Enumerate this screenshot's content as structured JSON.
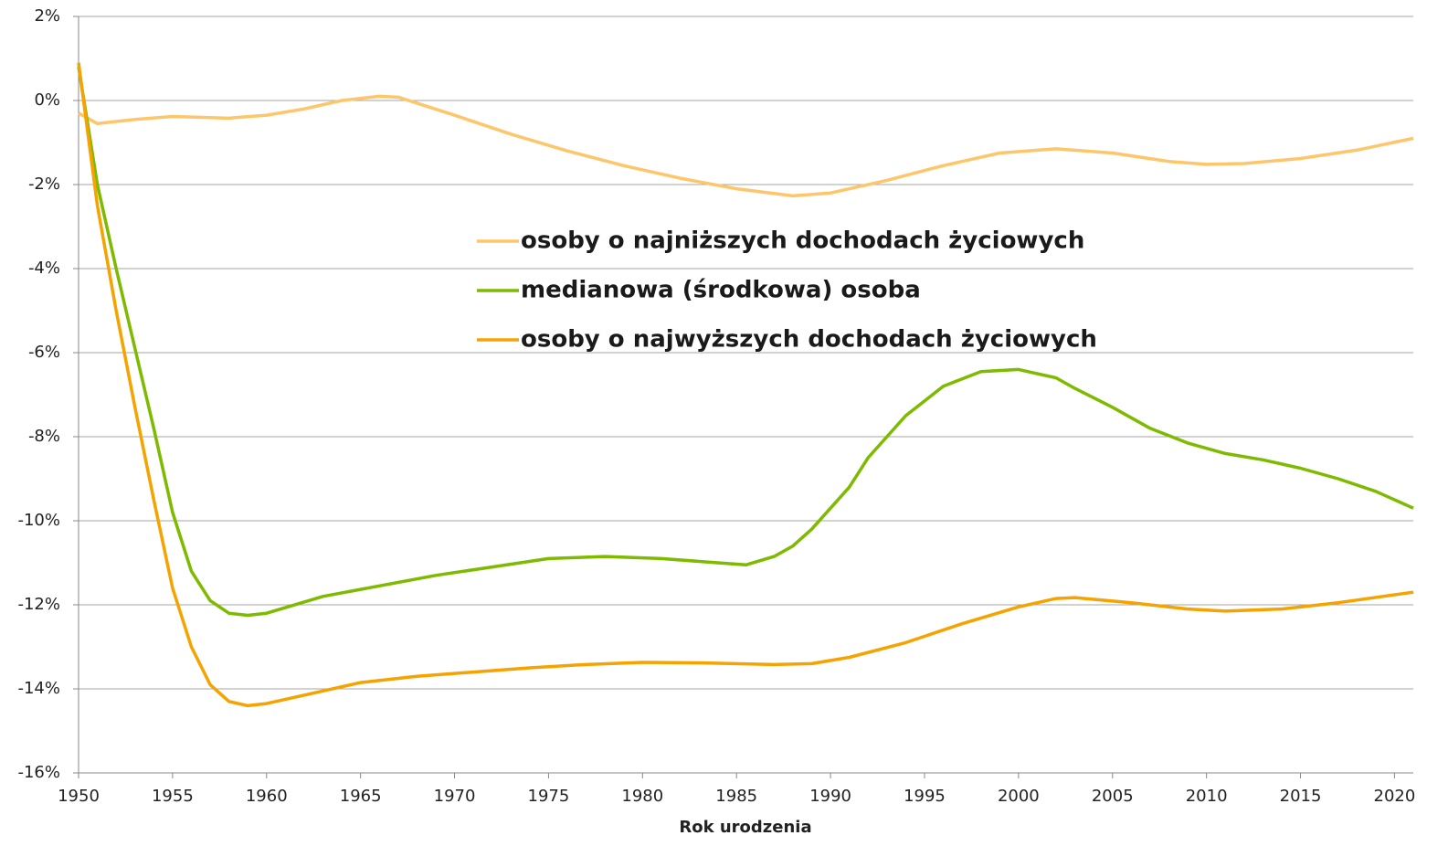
{
  "chart_data": {
    "type": "line",
    "xlabel": "Rok urodzenia",
    "xlim": [
      1950,
      2021
    ],
    "xticks": [
      1950,
      1955,
      1960,
      1965,
      1970,
      1975,
      1980,
      1985,
      1990,
      1995,
      2000,
      2005,
      2010,
      2015,
      2020
    ],
    "ylim": [
      -16,
      2
    ],
    "yticks": [
      {
        "value": 2,
        "label": "2%"
      },
      {
        "value": 0,
        "label": "0%"
      },
      {
        "value": -2,
        "label": "-2%"
      },
      {
        "value": -4,
        "label": "-4%"
      },
      {
        "value": -6,
        "label": "-6%"
      },
      {
        "value": -8,
        "label": "-8%"
      },
      {
        "value": -10,
        "label": "-10%"
      },
      {
        "value": -12,
        "label": "-12%"
      },
      {
        "value": -14,
        "label": "-14%"
      },
      {
        "value": -16,
        "label": "-16%"
      }
    ],
    "grid": true,
    "legend": "center",
    "series": [
      {
        "name": "osoby o najniższych dochodach życiowych",
        "color": "#fdc66b",
        "x": [
          1950,
          1951,
          1953,
          1955,
          1958,
          1960,
          1962,
          1964,
          1966,
          1967,
          1970,
          1973,
          1976,
          1979,
          1982,
          1985,
          1988,
          1990,
          1993,
          1996,
          1999,
          2002,
          2005,
          2008,
          2010,
          2012,
          2015,
          2018,
          2021
        ],
        "values": [
          -0.3,
          -0.55,
          -0.45,
          -0.38,
          -0.42,
          -0.35,
          -0.2,
          0.0,
          0.1,
          0.08,
          -0.35,
          -0.8,
          -1.2,
          -1.55,
          -1.85,
          -2.1,
          -2.27,
          -2.2,
          -1.9,
          -1.55,
          -1.25,
          -1.15,
          -1.25,
          -1.45,
          -1.52,
          -1.5,
          -1.38,
          -1.18,
          -0.9
        ]
      },
      {
        "name": "medianowa (środkowa) osoba",
        "color": "#7dba00",
        "x": [
          1950,
          1951,
          1952,
          1953,
          1954,
          1955,
          1956,
          1957,
          1958,
          1959,
          1960,
          1963,
          1966,
          1969,
          1972,
          1975,
          1978,
          1981,
          1984,
          1985.5,
          1987,
          1988,
          1989,
          1991,
          1992,
          1994,
          1996,
          1998,
          2000,
          2002,
          2003,
          2005,
          2007,
          2009,
          2011,
          2013,
          2015,
          2017,
          2019,
          2021
        ],
        "values": [
          0.8,
          -2.0,
          -4.0,
          -5.9,
          -7.8,
          -9.8,
          -11.2,
          -11.9,
          -12.2,
          -12.25,
          -12.2,
          -11.8,
          -11.55,
          -11.3,
          -11.1,
          -10.9,
          -10.85,
          -10.9,
          -11.0,
          -11.05,
          -10.85,
          -10.6,
          -10.2,
          -9.2,
          -8.5,
          -7.5,
          -6.8,
          -6.45,
          -6.4,
          -6.6,
          -6.85,
          -7.3,
          -7.8,
          -8.15,
          -8.4,
          -8.55,
          -8.75,
          -9.0,
          -9.3,
          -9.7
        ]
      },
      {
        "name": "osoby o najwyższych dochodach życiowych",
        "color": "#f5a300",
        "x": [
          1950,
          1951,
          1952,
          1953,
          1954,
          1955,
          1956,
          1957,
          1958,
          1959,
          1960,
          1963,
          1965,
          1968,
          1971,
          1974,
          1977,
          1980,
          1983,
          1987,
          1989,
          1991,
          1994,
          1997,
          2000,
          2002,
          2003,
          2006,
          2009,
          2011,
          2014,
          2017,
          2021
        ],
        "values": [
          0.9,
          -2.5,
          -5.0,
          -7.3,
          -9.5,
          -11.6,
          -13.0,
          -13.9,
          -14.3,
          -14.4,
          -14.35,
          -14.05,
          -13.85,
          -13.7,
          -13.6,
          -13.5,
          -13.42,
          -13.37,
          -13.38,
          -13.42,
          -13.4,
          -13.25,
          -12.9,
          -12.45,
          -12.05,
          -11.85,
          -11.83,
          -11.95,
          -12.1,
          -12.15,
          -12.1,
          -11.95,
          -11.7
        ]
      }
    ]
  }
}
